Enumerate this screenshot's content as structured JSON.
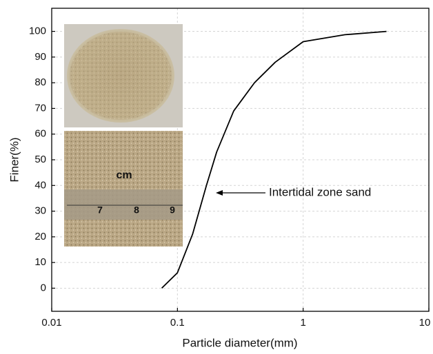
{
  "chart_data": {
    "type": "line",
    "x_label": "Particle diameter(mm)",
    "y_label": "Finer(%)",
    "x_scale": "log",
    "xlim": [
      0.01,
      10
    ],
    "xticks": [
      0.01,
      0.1,
      1,
      10
    ],
    "ylim": [
      -9,
      109
    ],
    "yticks": [
      0,
      10,
      20,
      30,
      40,
      50,
      60,
      70,
      80,
      90,
      100
    ],
    "grid": true,
    "series": [
      {
        "color": "#000000",
        "x": [
          0.075,
          0.1,
          0.132,
          0.17,
          0.205,
          0.28,
          0.41,
          0.6,
          1,
          2.15,
          4.6
        ],
        "values": [
          0,
          6,
          21,
          40,
          53,
          69,
          80,
          88,
          96,
          98.7,
          100
        ]
      }
    ],
    "annotation": "Intertidal zone sand",
    "photo_labels": {
      "unit": "cm",
      "ruler": [
        "7",
        "8",
        "9"
      ]
    }
  }
}
